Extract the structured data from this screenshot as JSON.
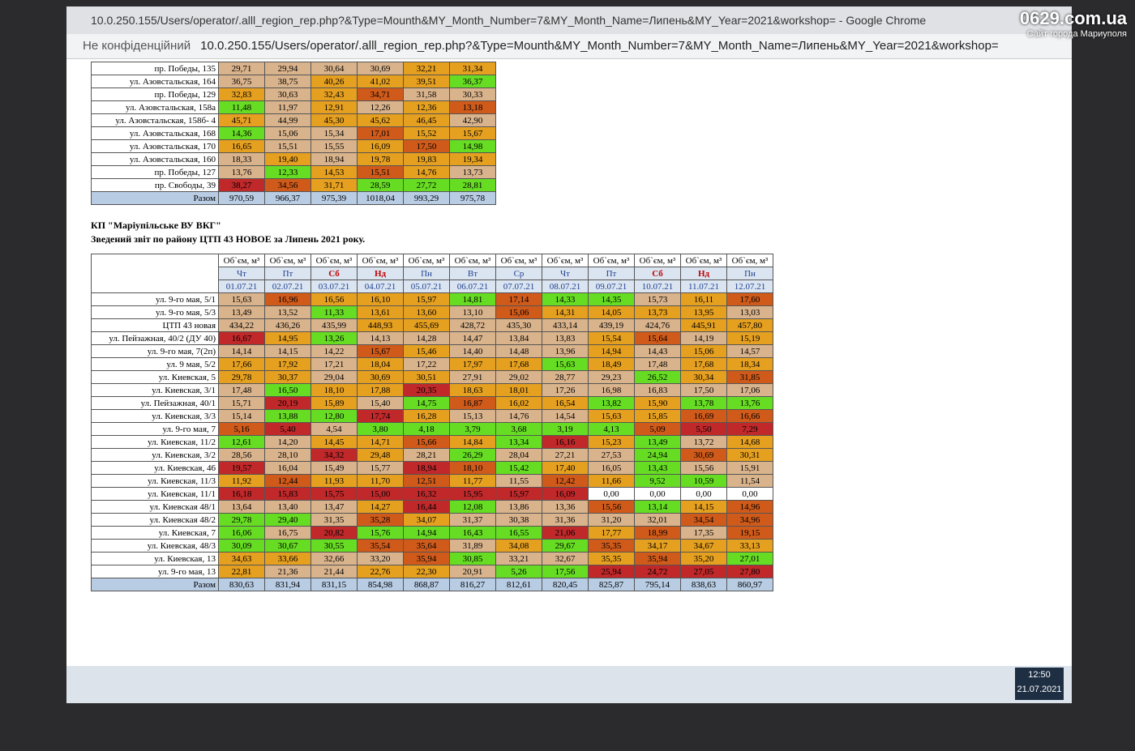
{
  "window": {
    "title": "10.0.250.155/Users/operator/.alll_region_rep.php?&Type=Mounth&MY_Month_Number=7&MY_Month_Name=Липень&MY_Year=2021&workshop= - Google Chrome",
    "security": "Не конфіденційний",
    "url": "10.0.250.155/Users/operator/.alll_region_rep.php?&Type=Mounth&MY_Month_Number=7&MY_Month_Name=Липень&MY_Year=2021&workshop="
  },
  "watermark": {
    "site": "0629.com.ua",
    "caption": "Сайт города Мариуполя"
  },
  "upper_table": {
    "rows": [
      {
        "label": "пр. Победы, 135",
        "values": [
          "29,71",
          "29,94",
          "30,64",
          "30,69",
          "32,21",
          "31,34"
        ]
      },
      {
        "label": "ул. Азовстальская, 164",
        "values": [
          "36,75",
          "38,75",
          "40,26",
          "41,02",
          "39,51",
          "36,37"
        ]
      },
      {
        "label": "пр. Победы, 129",
        "values": [
          "32,83",
          "30,63",
          "32,43",
          "34,71",
          "31,58",
          "30,33"
        ]
      },
      {
        "label": "ул. Азовстальская, 158а",
        "values": [
          "11,48",
          "11,97",
          "12,91",
          "12,26",
          "12,36",
          "13,18"
        ]
      },
      {
        "label": "ул. Азовстальская, 158б- 4",
        "values": [
          "45,71",
          "44,99",
          "45,30",
          "45,62",
          "46,45",
          "42,90"
        ]
      },
      {
        "label": "ул. Азовстальская, 168",
        "values": [
          "14,36",
          "15,06",
          "15,34",
          "17,01",
          "15,52",
          "15,67"
        ]
      },
      {
        "label": "ул. Азовстальская, 170",
        "values": [
          "16,65",
          "15,51",
          "15,55",
          "16,09",
          "17,50",
          "14,98"
        ]
      },
      {
        "label": "ул. Азовстальская, 160",
        "values": [
          "18,33",
          "19,40",
          "18,94",
          "19,78",
          "19,83",
          "19,34"
        ]
      },
      {
        "label": "пр. Победы, 127",
        "values": [
          "13,76",
          "12,33",
          "14,53",
          "15,51",
          "14,76",
          "13,73"
        ]
      },
      {
        "label": "пр. Свободы, 39",
        "values": [
          "38,27",
          "34,56",
          "31,71",
          "28,59",
          "27,72",
          "28,81"
        ]
      }
    ],
    "total": {
      "label": "Разом",
      "values": [
        "970,59",
        "966,37",
        "975,39",
        "1018,04",
        "993,29",
        "975,78"
      ]
    }
  },
  "report": {
    "org": "КП \"Маріупільське ВУ ВКГ\"",
    "title": "Зведений звіт по району ЦТП 43 НОВОЕ за Липень 2021 року."
  },
  "lower_table": {
    "unit": "Об`єм, м³",
    "days": [
      "Чт",
      "Пт",
      "Сб",
      "Нд",
      "Пн",
      "Вт",
      "Ср",
      "Чт",
      "Пт",
      "Сб",
      "Нд",
      "Пн"
    ],
    "dates": [
      "01.07.21",
      "02.07.21",
      "03.07.21",
      "04.07.21",
      "05.07.21",
      "06.07.21",
      "07.07.21",
      "08.07.21",
      "09.07.21",
      "10.07.21",
      "11.07.21",
      "12.07.21"
    ],
    "red_days": [
      2,
      3,
      9,
      10
    ],
    "rows": [
      {
        "label": "ул. 9-го мая, 5/1",
        "values": [
          "15,63",
          "16,96",
          "16,56",
          "16,10",
          "15,97",
          "14,81",
          "17,14",
          "14,33",
          "14,35",
          "15,73",
          "16,11",
          "17,60"
        ]
      },
      {
        "label": "ул. 9-го мая, 5/3",
        "values": [
          "13,49",
          "13,52",
          "11,33",
          "13,61",
          "13,60",
          "13,10",
          "15,06",
          "14,31",
          "14,05",
          "13,73",
          "13,95",
          "13,03"
        ]
      },
      {
        "label": "ЦТП 43 новая",
        "values": [
          "434,22",
          "436,26",
          "435,99",
          "448,93",
          "455,69",
          "428,72",
          "435,30",
          "433,14",
          "439,19",
          "424,76",
          "445,91",
          "457,80"
        ]
      },
      {
        "label": "ул. Пейзажная, 40/2 (ДУ 40)",
        "values": [
          "16,67",
          "14,95",
          "13,26",
          "14,13",
          "14,28",
          "14,47",
          "13,84",
          "13,83",
          "15,54",
          "15,64",
          "14,19",
          "15,19"
        ]
      },
      {
        "label": "ул. 9-го мая, 7(2п)",
        "values": [
          "14,14",
          "14,15",
          "14,22",
          "15,67",
          "15,46",
          "14,40",
          "14,48",
          "13,96",
          "14,94",
          "14,43",
          "15,06",
          "14,57"
        ]
      },
      {
        "label": "ул. 9 мая, 5/2",
        "values": [
          "17,66",
          "17,92",
          "17,21",
          "18,04",
          "17,22",
          "17,97",
          "17,68",
          "15,63",
          "18,49",
          "17,48",
          "17,68",
          "18,34"
        ]
      },
      {
        "label": "ул. Киевская, 5",
        "values": [
          "29,78",
          "30,37",
          "29,04",
          "30,69",
          "30,51",
          "27,91",
          "29,02",
          "28,77",
          "29,23",
          "26,52",
          "30,34",
          "31,85"
        ]
      },
      {
        "label": "ул. Киевская, 3/1",
        "values": [
          "17,48",
          "16,50",
          "18,10",
          "17,88",
          "20,35",
          "18,63",
          "18,01",
          "17,26",
          "16,98",
          "16,83",
          "17,50",
          "17,06"
        ]
      },
      {
        "label": "ул. Пейзажная, 40/1",
        "values": [
          "15,71",
          "20,19",
          "15,89",
          "15,40",
          "14,75",
          "16,87",
          "16,02",
          "16,54",
          "13,82",
          "15,90",
          "13,78",
          "13,76"
        ]
      },
      {
        "label": "ул. Киевская, 3/3",
        "values": [
          "15,14",
          "13,88",
          "12,80",
          "17,74",
          "16,28",
          "15,13",
          "14,76",
          "14,54",
          "15,63",
          "15,85",
          "16,69",
          "16,66"
        ]
      },
      {
        "label": "ул. 9-го мая, 7",
        "values": [
          "5,16",
          "5,40",
          "4,54",
          "3,80",
          "4,18",
          "3,79",
          "3,68",
          "3,19",
          "4,13",
          "5,09",
          "5,50",
          "7,29"
        ]
      },
      {
        "label": "ул. Киевская, 11/2",
        "values": [
          "12,61",
          "14,20",
          "14,45",
          "14,71",
          "15,66",
          "14,84",
          "13,34",
          "16,16",
          "15,23",
          "13,49",
          "13,72",
          "14,68"
        ]
      },
      {
        "label": "ул. Киевская, 3/2",
        "values": [
          "28,56",
          "28,10",
          "34,32",
          "29,48",
          "28,21",
          "26,29",
          "28,04",
          "27,21",
          "27,53",
          "24,94",
          "30,69",
          "30,31"
        ]
      },
      {
        "label": "ул. Киевская, 46",
        "values": [
          "19,57",
          "16,04",
          "15,49",
          "15,77",
          "18,94",
          "18,10",
          "15,42",
          "17,40",
          "16,05",
          "13,43",
          "15,56",
          "15,91"
        ]
      },
      {
        "label": "ул. Киевская, 11/3",
        "values": [
          "11,92",
          "12,44",
          "11,93",
          "11,70",
          "12,51",
          "11,77",
          "11,55",
          "12,42",
          "11,66",
          "9,52",
          "10,59",
          "11,54"
        ]
      },
      {
        "label": "ул. Киевская, 11/1",
        "values": [
          "16,18",
          "15,83",
          "15,75",
          "15,00",
          "16,32",
          "15,95",
          "15,97",
          "16,09",
          "0,00",
          "0,00",
          "0,00",
          "0,00"
        ]
      },
      {
        "label": "ул. Киевская 48/1",
        "values": [
          "13,64",
          "13,40",
          "13,47",
          "14,27",
          "16,44",
          "12,08",
          "13,86",
          "13,36",
          "15,56",
          "13,14",
          "14,15",
          "14,96"
        ]
      },
      {
        "label": "ул. Киевская 48/2",
        "values": [
          "29,78",
          "29,40",
          "31,35",
          "35,28",
          "34,07",
          "31,37",
          "30,38",
          "31,36",
          "31,20",
          "32,01",
          "34,54",
          "34,96"
        ]
      },
      {
        "label": "ул. Киевская, 7",
        "values": [
          "16,06",
          "16,75",
          "20,82",
          "15,76",
          "14,94",
          "16,43",
          "16,55",
          "21,06",
          "17,77",
          "18,99",
          "17,35",
          "19,15"
        ]
      },
      {
        "label": "ул. Киевская, 48/3",
        "values": [
          "30,09",
          "30,67",
          "30,55",
          "35,54",
          "35,64",
          "31,89",
          "34,08",
          "29,67",
          "35,35",
          "34,17",
          "34,67",
          "33,13"
        ]
      },
      {
        "label": "ул. Киевская, 13",
        "values": [
          "34,63",
          "33,66",
          "32,66",
          "33,20",
          "35,94",
          "30,85",
          "33,21",
          "32,67",
          "35,35",
          "35,94",
          "35,20",
          "27,01"
        ]
      },
      {
        "label": "ул. 9-го мая, 13",
        "values": [
          "22,81",
          "21,36",
          "21,44",
          "22,76",
          "22,30",
          "20,91",
          "5,26",
          "17,56",
          "25,94",
          "24,72",
          "27,05",
          "27,80"
        ]
      }
    ],
    "total": {
      "label": "Разом",
      "values": [
        "830,63",
        "831,94",
        "831,15",
        "854,98",
        "868,87",
        "816,27",
        "812,61",
        "820,45",
        "825,87",
        "795,14",
        "838,63",
        "860,97"
      ]
    }
  },
  "taskbar": {
    "time": "12:50",
    "date": "21.07.2021"
  }
}
